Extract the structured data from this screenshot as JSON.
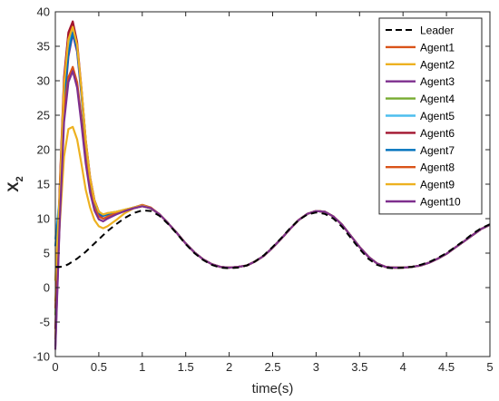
{
  "chart_data": {
    "type": "line",
    "xlabel": "time(s)",
    "ylabel": "X",
    "ylabel_subscript": "2",
    "xlim": [
      0,
      5
    ],
    "ylim": [
      -10,
      40
    ],
    "xticks": [
      0,
      0.5,
      1,
      1.5,
      2,
      2.5,
      3,
      3.5,
      4,
      4.5,
      5
    ],
    "xtick_labels": [
      "0",
      "0.5",
      "1",
      "1.5",
      "2",
      "2.5",
      "3",
      "3.5",
      "4",
      "4.5",
      "5"
    ],
    "yticks": [
      -10,
      -5,
      0,
      5,
      10,
      15,
      20,
      25,
      30,
      35,
      40
    ],
    "ytick_labels": [
      "-10",
      "-5",
      "0",
      "5",
      "10",
      "15",
      "20",
      "25",
      "30",
      "35",
      "40"
    ],
    "grid": false,
    "legend_position": "top-right",
    "x": [
      0,
      0.05,
      0.1,
      0.15,
      0.2,
      0.25,
      0.3,
      0.35,
      0.4,
      0.45,
      0.5,
      0.55,
      0.6,
      0.7,
      0.8,
      0.9,
      1.0,
      1.1,
      1.2,
      1.3,
      1.4,
      1.5,
      1.6,
      1.7,
      1.8,
      1.9,
      2.0,
      2.1,
      2.2,
      2.3,
      2.4,
      2.5,
      2.6,
      2.7,
      2.8,
      2.9,
      3.0,
      3.1,
      3.2,
      3.3,
      3.4,
      3.5,
      3.6,
      3.7,
      3.8,
      3.9,
      4.0,
      4.1,
      4.2,
      4.3,
      4.4,
      4.5,
      4.6,
      4.7,
      4.8,
      4.9,
      5.0
    ],
    "series": [
      {
        "name": "Leader",
        "color": "#000000",
        "dashed": true,
        "values": [
          3.0,
          3.0,
          3.1,
          3.4,
          3.8,
          4.2,
          4.7,
          5.2,
          5.8,
          6.4,
          7.0,
          7.6,
          8.2,
          9.2,
          10.1,
          10.8,
          11.2,
          11.1,
          10.4,
          9.2,
          7.8,
          6.3,
          5.0,
          4.0,
          3.3,
          2.9,
          2.8,
          2.9,
          3.2,
          3.8,
          4.7,
          5.9,
          7.2,
          8.6,
          9.8,
          10.6,
          10.9,
          10.7,
          10.0,
          8.8,
          7.2,
          5.6,
          4.2,
          3.3,
          2.9,
          2.8,
          2.9,
          3.0,
          3.3,
          3.7,
          4.3,
          5.0,
          5.9,
          6.8,
          7.8,
          8.6,
          9.2
        ]
      },
      {
        "name": "Agent1",
        "color": "#d95319",
        "dashed": false,
        "values": [
          -7.5,
          14.0,
          30.0,
          36.8,
          38.2,
          35.0,
          28.5,
          21.0,
          15.8,
          12.6,
          11.0,
          10.5,
          10.7,
          10.9,
          11.2,
          11.6,
          12.0,
          11.6,
          10.6,
          9.3,
          7.9,
          6.4,
          5.1,
          4.1,
          3.4,
          3.0,
          2.9,
          3.0,
          3.2,
          3.8,
          4.6,
          5.8,
          7.1,
          8.5,
          9.8,
          10.7,
          11.1,
          11.0,
          10.3,
          9.1,
          7.5,
          5.9,
          4.5,
          3.5,
          3.0,
          2.9,
          2.9,
          3.0,
          3.2,
          3.6,
          4.2,
          4.9,
          5.8,
          6.7,
          7.6,
          8.5,
          9.1
        ]
      },
      {
        "name": "Agent2",
        "color": "#edb120",
        "dashed": false,
        "values": [
          -2.0,
          9.0,
          19.0,
          23.0,
          23.3,
          21.5,
          18.0,
          14.2,
          11.6,
          9.8,
          8.9,
          8.6,
          8.9,
          9.8,
          10.8,
          11.5,
          11.8,
          11.5,
          10.6,
          9.3,
          7.9,
          6.4,
          5.1,
          4.1,
          3.4,
          3.0,
          2.9,
          3.0,
          3.2,
          3.8,
          4.6,
          5.8,
          7.1,
          8.5,
          9.8,
          10.7,
          11.1,
          11.0,
          10.3,
          9.1,
          7.5,
          5.9,
          4.5,
          3.5,
          3.0,
          2.9,
          2.9,
          3.0,
          3.2,
          3.6,
          4.2,
          4.9,
          5.8,
          6.7,
          7.6,
          8.5,
          9.1
        ]
      },
      {
        "name": "Agent3",
        "color": "#7e2f8e",
        "dashed": false,
        "values": [
          -8.5,
          10.0,
          26.0,
          33.5,
          36.8,
          34.2,
          28.0,
          20.8,
          15.5,
          12.3,
          10.6,
          10.0,
          10.2,
          10.7,
          11.1,
          11.5,
          11.8,
          11.5,
          10.6,
          9.3,
          7.9,
          6.4,
          5.1,
          4.1,
          3.4,
          3.0,
          2.9,
          3.0,
          3.2,
          3.8,
          4.6,
          5.8,
          7.1,
          8.5,
          9.8,
          10.7,
          11.1,
          11.0,
          10.3,
          9.1,
          7.5,
          5.9,
          4.5,
          3.5,
          3.0,
          2.9,
          2.9,
          3.0,
          3.2,
          3.6,
          4.2,
          4.9,
          5.8,
          6.7,
          7.6,
          8.5,
          9.1
        ]
      },
      {
        "name": "Agent4",
        "color": "#77ac30",
        "dashed": false,
        "values": [
          -4.0,
          12.0,
          28.0,
          35.0,
          37.5,
          35.0,
          28.8,
          21.2,
          15.8,
          12.6,
          11.0,
          10.6,
          10.8,
          11.0,
          11.3,
          11.6,
          11.9,
          11.5,
          10.6,
          9.3,
          7.9,
          6.4,
          5.1,
          4.1,
          3.4,
          3.0,
          2.9,
          3.0,
          3.2,
          3.8,
          4.6,
          5.8,
          7.1,
          8.5,
          9.8,
          10.7,
          11.1,
          11.0,
          10.3,
          9.1,
          7.5,
          5.9,
          4.5,
          3.5,
          3.0,
          2.9,
          2.9,
          3.0,
          3.2,
          3.6,
          4.2,
          4.9,
          5.8,
          6.7,
          7.6,
          8.5,
          9.1
        ]
      },
      {
        "name": "Agent5",
        "color": "#4dbeee",
        "dashed": false,
        "values": [
          7.0,
          13.0,
          27.5,
          34.5,
          37.2,
          34.8,
          28.6,
          21.0,
          15.7,
          12.5,
          10.9,
          10.5,
          10.7,
          10.9,
          11.2,
          11.6,
          11.9,
          11.5,
          10.6,
          9.3,
          7.9,
          6.4,
          5.1,
          4.1,
          3.4,
          3.0,
          2.9,
          3.0,
          3.2,
          3.8,
          4.6,
          5.8,
          7.1,
          8.5,
          9.8,
          10.7,
          11.1,
          11.0,
          10.3,
          9.1,
          7.5,
          5.9,
          4.5,
          3.5,
          3.0,
          2.9,
          2.9,
          3.0,
          3.2,
          3.6,
          4.2,
          4.9,
          5.8,
          6.7,
          7.6,
          8.5,
          9.1
        ]
      },
      {
        "name": "Agent6",
        "color": "#a2142f",
        "dashed": false,
        "values": [
          -6.0,
          14.5,
          30.5,
          37.0,
          38.6,
          35.6,
          29.0,
          21.4,
          16.0,
          12.7,
          11.0,
          10.5,
          10.7,
          10.9,
          11.2,
          11.6,
          11.9,
          11.5,
          10.6,
          9.3,
          7.9,
          6.4,
          5.1,
          4.1,
          3.4,
          3.0,
          2.9,
          3.0,
          3.2,
          3.8,
          4.6,
          5.8,
          7.1,
          8.5,
          9.8,
          10.7,
          11.1,
          11.0,
          10.3,
          9.1,
          7.5,
          5.9,
          4.5,
          3.5,
          3.0,
          2.9,
          2.9,
          3.0,
          3.2,
          3.6,
          4.2,
          4.9,
          5.8,
          6.7,
          7.6,
          8.5,
          9.1
        ]
      },
      {
        "name": "Agent7",
        "color": "#0072bd",
        "dashed": false,
        "values": [
          6.0,
          12.5,
          27.0,
          34.0,
          37.0,
          34.6,
          28.4,
          20.9,
          15.6,
          12.4,
          10.8,
          10.4,
          10.6,
          10.9,
          11.2,
          11.6,
          11.9,
          11.5,
          10.6,
          9.3,
          7.9,
          6.4,
          5.1,
          4.1,
          3.4,
          3.0,
          2.9,
          3.0,
          3.2,
          3.8,
          4.6,
          5.8,
          7.1,
          8.5,
          9.8,
          10.7,
          11.1,
          11.0,
          10.3,
          9.1,
          7.5,
          5.9,
          4.5,
          3.5,
          3.0,
          2.9,
          2.9,
          3.0,
          3.2,
          3.6,
          4.2,
          4.9,
          5.8,
          6.7,
          7.6,
          8.5,
          9.1
        ]
      },
      {
        "name": "Agent8",
        "color": "#d95319",
        "dashed": false,
        "values": [
          -3.0,
          11.0,
          26.0,
          30.5,
          32.0,
          29.8,
          24.6,
          18.6,
          14.2,
          11.6,
          10.3,
          10.0,
          10.3,
          10.8,
          11.2,
          11.6,
          11.9,
          11.5,
          10.6,
          9.3,
          7.9,
          6.4,
          5.1,
          4.1,
          3.4,
          3.0,
          2.9,
          3.0,
          3.2,
          3.8,
          4.6,
          5.8,
          7.1,
          8.5,
          9.8,
          10.7,
          11.1,
          11.0,
          10.3,
          9.1,
          7.5,
          5.9,
          4.5,
          3.5,
          3.0,
          2.9,
          2.9,
          3.0,
          3.2,
          3.6,
          4.2,
          4.9,
          5.8,
          6.7,
          7.6,
          8.5,
          9.1
        ]
      },
      {
        "name": "Agent9",
        "color": "#edb120",
        "dashed": false,
        "values": [
          1.0,
          13.5,
          29.5,
          36.0,
          37.8,
          35.2,
          28.9,
          21.3,
          15.9,
          12.6,
          11.0,
          10.6,
          10.8,
          11.0,
          11.3,
          11.6,
          11.9,
          11.5,
          10.6,
          9.3,
          7.9,
          6.4,
          5.1,
          4.1,
          3.4,
          3.0,
          2.9,
          3.0,
          3.2,
          3.8,
          4.6,
          5.8,
          7.1,
          8.5,
          9.8,
          10.7,
          11.1,
          11.0,
          10.3,
          9.1,
          7.5,
          5.9,
          4.5,
          3.5,
          3.0,
          2.9,
          2.9,
          3.0,
          3.2,
          3.6,
          4.2,
          4.9,
          5.8,
          6.7,
          7.6,
          8.5,
          9.1
        ]
      },
      {
        "name": "Agent10",
        "color": "#7e2f8e",
        "dashed": false,
        "values": [
          -9.0,
          9.5,
          24.0,
          29.8,
          31.4,
          29.0,
          23.8,
          18.0,
          13.8,
          11.2,
          9.9,
          9.6,
          10.0,
          10.6,
          11.1,
          11.5,
          11.8,
          11.5,
          10.6,
          9.3,
          7.9,
          6.4,
          5.1,
          4.1,
          3.4,
          3.0,
          2.9,
          3.0,
          3.2,
          3.8,
          4.6,
          5.8,
          7.1,
          8.5,
          9.8,
          10.7,
          11.1,
          11.0,
          10.3,
          9.1,
          7.5,
          5.9,
          4.5,
          3.5,
          3.0,
          2.9,
          2.9,
          3.0,
          3.2,
          3.6,
          4.2,
          4.9,
          5.8,
          6.7,
          7.6,
          8.5,
          9.1
        ]
      }
    ]
  }
}
